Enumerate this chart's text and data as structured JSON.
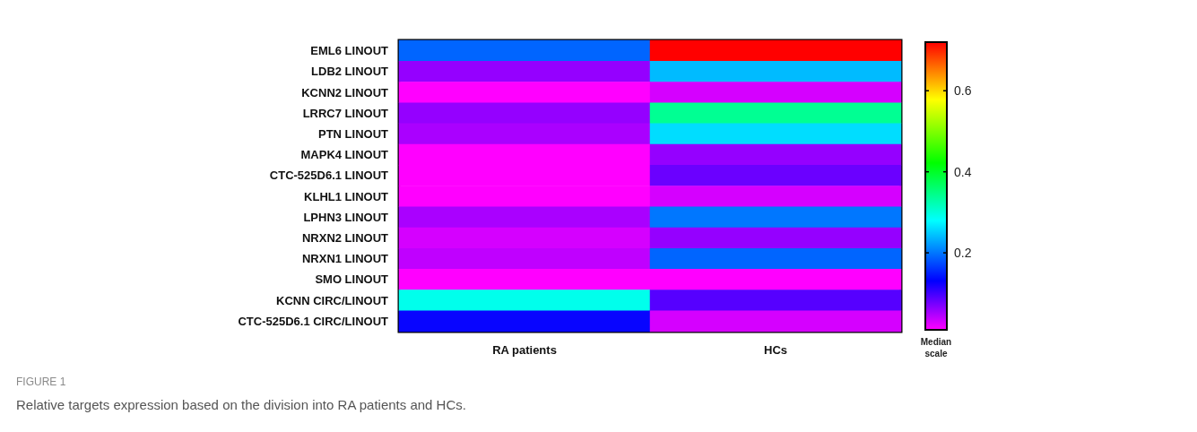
{
  "chart_data": {
    "type": "heatmap",
    "title": "FIGURE 1",
    "subtitle": "Relative targets expression based on the division into RA patients and HCs.",
    "clabel": "Median scale",
    "categories": [
      "RA patients",
      "HCs"
    ],
    "y_categories": [
      "EML6 LINOUT",
      "LDB2 LINOUT",
      "KCNN2 LINOUT",
      "LRRC7 LINOUT",
      "PTN LINOUT",
      "MAPK4 LINOUT",
      "CTC-525D6.1 LINOUT",
      "KLHL1 LINOUT",
      "LPHN3 LINOUT",
      "NRXN2 LINOUT",
      "NRXN1 LINOUT",
      "SMO LINOUT",
      "KCNN CIRC/LINOUT",
      "CTC-525D6.1 CIRC/LINOUT"
    ],
    "cells": [
      [
        0.19,
        0.72
      ],
      [
        0.06,
        0.24
      ],
      [
        0.01,
        0.03
      ],
      [
        0.06,
        0.34
      ],
      [
        0.05,
        0.26
      ],
      [
        0.01,
        0.06
      ],
      [
        0.01,
        0.08
      ],
      [
        0.01,
        0.03
      ],
      [
        0.05,
        0.2
      ],
      [
        0.03,
        0.06
      ],
      [
        0.04,
        0.19
      ],
      [
        0.01,
        0.01
      ],
      [
        0.29,
        0.09
      ],
      [
        0.13,
        0.03
      ]
    ],
    "clim": [
      0.01,
      0.72
    ],
    "cticks": [
      0.2,
      0.4,
      0.6
    ]
  }
}
